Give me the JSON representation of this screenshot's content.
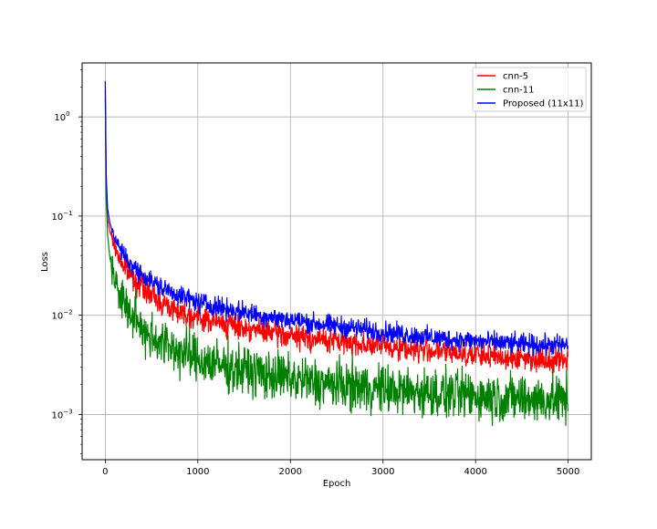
{
  "chart_data": {
    "type": "line",
    "title": "",
    "xlabel": "Epoch",
    "ylabel": "Loss",
    "xlim": [
      -250,
      5250
    ],
    "ylim": [
      0.00035,
      3.5
    ],
    "yscale": "log",
    "grid": true,
    "legend_position": "top-right",
    "xticks": [
      {
        "value": 0,
        "label": "0"
      },
      {
        "value": 1000,
        "label": "1000"
      },
      {
        "value": 2000,
        "label": "2000"
      },
      {
        "value": 3000,
        "label": "3000"
      },
      {
        "value": 4000,
        "label": "4000"
      },
      {
        "value": 5000,
        "label": "5000"
      }
    ],
    "yticks": [
      {
        "value": 0.001,
        "base": "10",
        "exp": "−3"
      },
      {
        "value": 0.01,
        "base": "10",
        "exp": "−2"
      },
      {
        "value": 0.1,
        "base": "10",
        "exp": "−1"
      },
      {
        "value": 1,
        "base": "10",
        "exp": "0"
      }
    ],
    "series": [
      {
        "name": "cnn-5",
        "color": "#ff0000",
        "x": [
          0,
          10,
          25,
          50,
          100,
          150,
          200,
          300,
          400,
          500,
          600,
          800,
          1000,
          1250,
          1500,
          1750,
          2000,
          2250,
          2500,
          2750,
          3000,
          3250,
          3500,
          3750,
          4000,
          4250,
          4500,
          4750,
          5000
        ],
        "y": [
          1.9,
          0.2,
          0.095,
          0.07,
          0.05,
          0.038,
          0.031,
          0.024,
          0.019,
          0.016,
          0.0135,
          0.011,
          0.0095,
          0.0083,
          0.0075,
          0.0068,
          0.0062,
          0.0058,
          0.0055,
          0.0052,
          0.0049,
          0.0046,
          0.0044,
          0.0042,
          0.004,
          0.0038,
          0.0037,
          0.0036,
          0.0036
        ]
      },
      {
        "name": "cnn-11",
        "color": "#008000",
        "x": [
          0,
          10,
          25,
          50,
          100,
          150,
          200,
          300,
          400,
          500,
          600,
          800,
          1000,
          1250,
          1500,
          1750,
          2000,
          2250,
          2500,
          2750,
          3000,
          3250,
          3500,
          3750,
          4000,
          4250,
          4500,
          4750,
          5000
        ],
        "y": [
          1.6,
          0.15,
          0.065,
          0.038,
          0.024,
          0.017,
          0.013,
          0.0095,
          0.0075,
          0.0062,
          0.0054,
          0.0043,
          0.0036,
          0.0031,
          0.0028,
          0.0025,
          0.0023,
          0.0021,
          0.002,
          0.0019,
          0.0018,
          0.0017,
          0.00165,
          0.0016,
          0.00155,
          0.0015,
          0.00145,
          0.0014,
          0.0014
        ]
      },
      {
        "name": "Proposed (11x11)",
        "color": "#0000ff",
        "x": [
          0,
          10,
          25,
          50,
          100,
          150,
          200,
          300,
          400,
          500,
          600,
          800,
          1000,
          1250,
          1500,
          1750,
          2000,
          2250,
          2500,
          2750,
          3000,
          3250,
          3500,
          3750,
          4000,
          4250,
          4500,
          4750,
          5000
        ],
        "y": [
          2.3,
          0.26,
          0.12,
          0.085,
          0.062,
          0.048,
          0.04,
          0.031,
          0.026,
          0.022,
          0.019,
          0.016,
          0.0135,
          0.012,
          0.0107,
          0.0097,
          0.009,
          0.0083,
          0.0078,
          0.0073,
          0.0068,
          0.0064,
          0.006,
          0.0057,
          0.0055,
          0.0053,
          0.0051,
          0.005,
          0.005
        ]
      }
    ]
  }
}
